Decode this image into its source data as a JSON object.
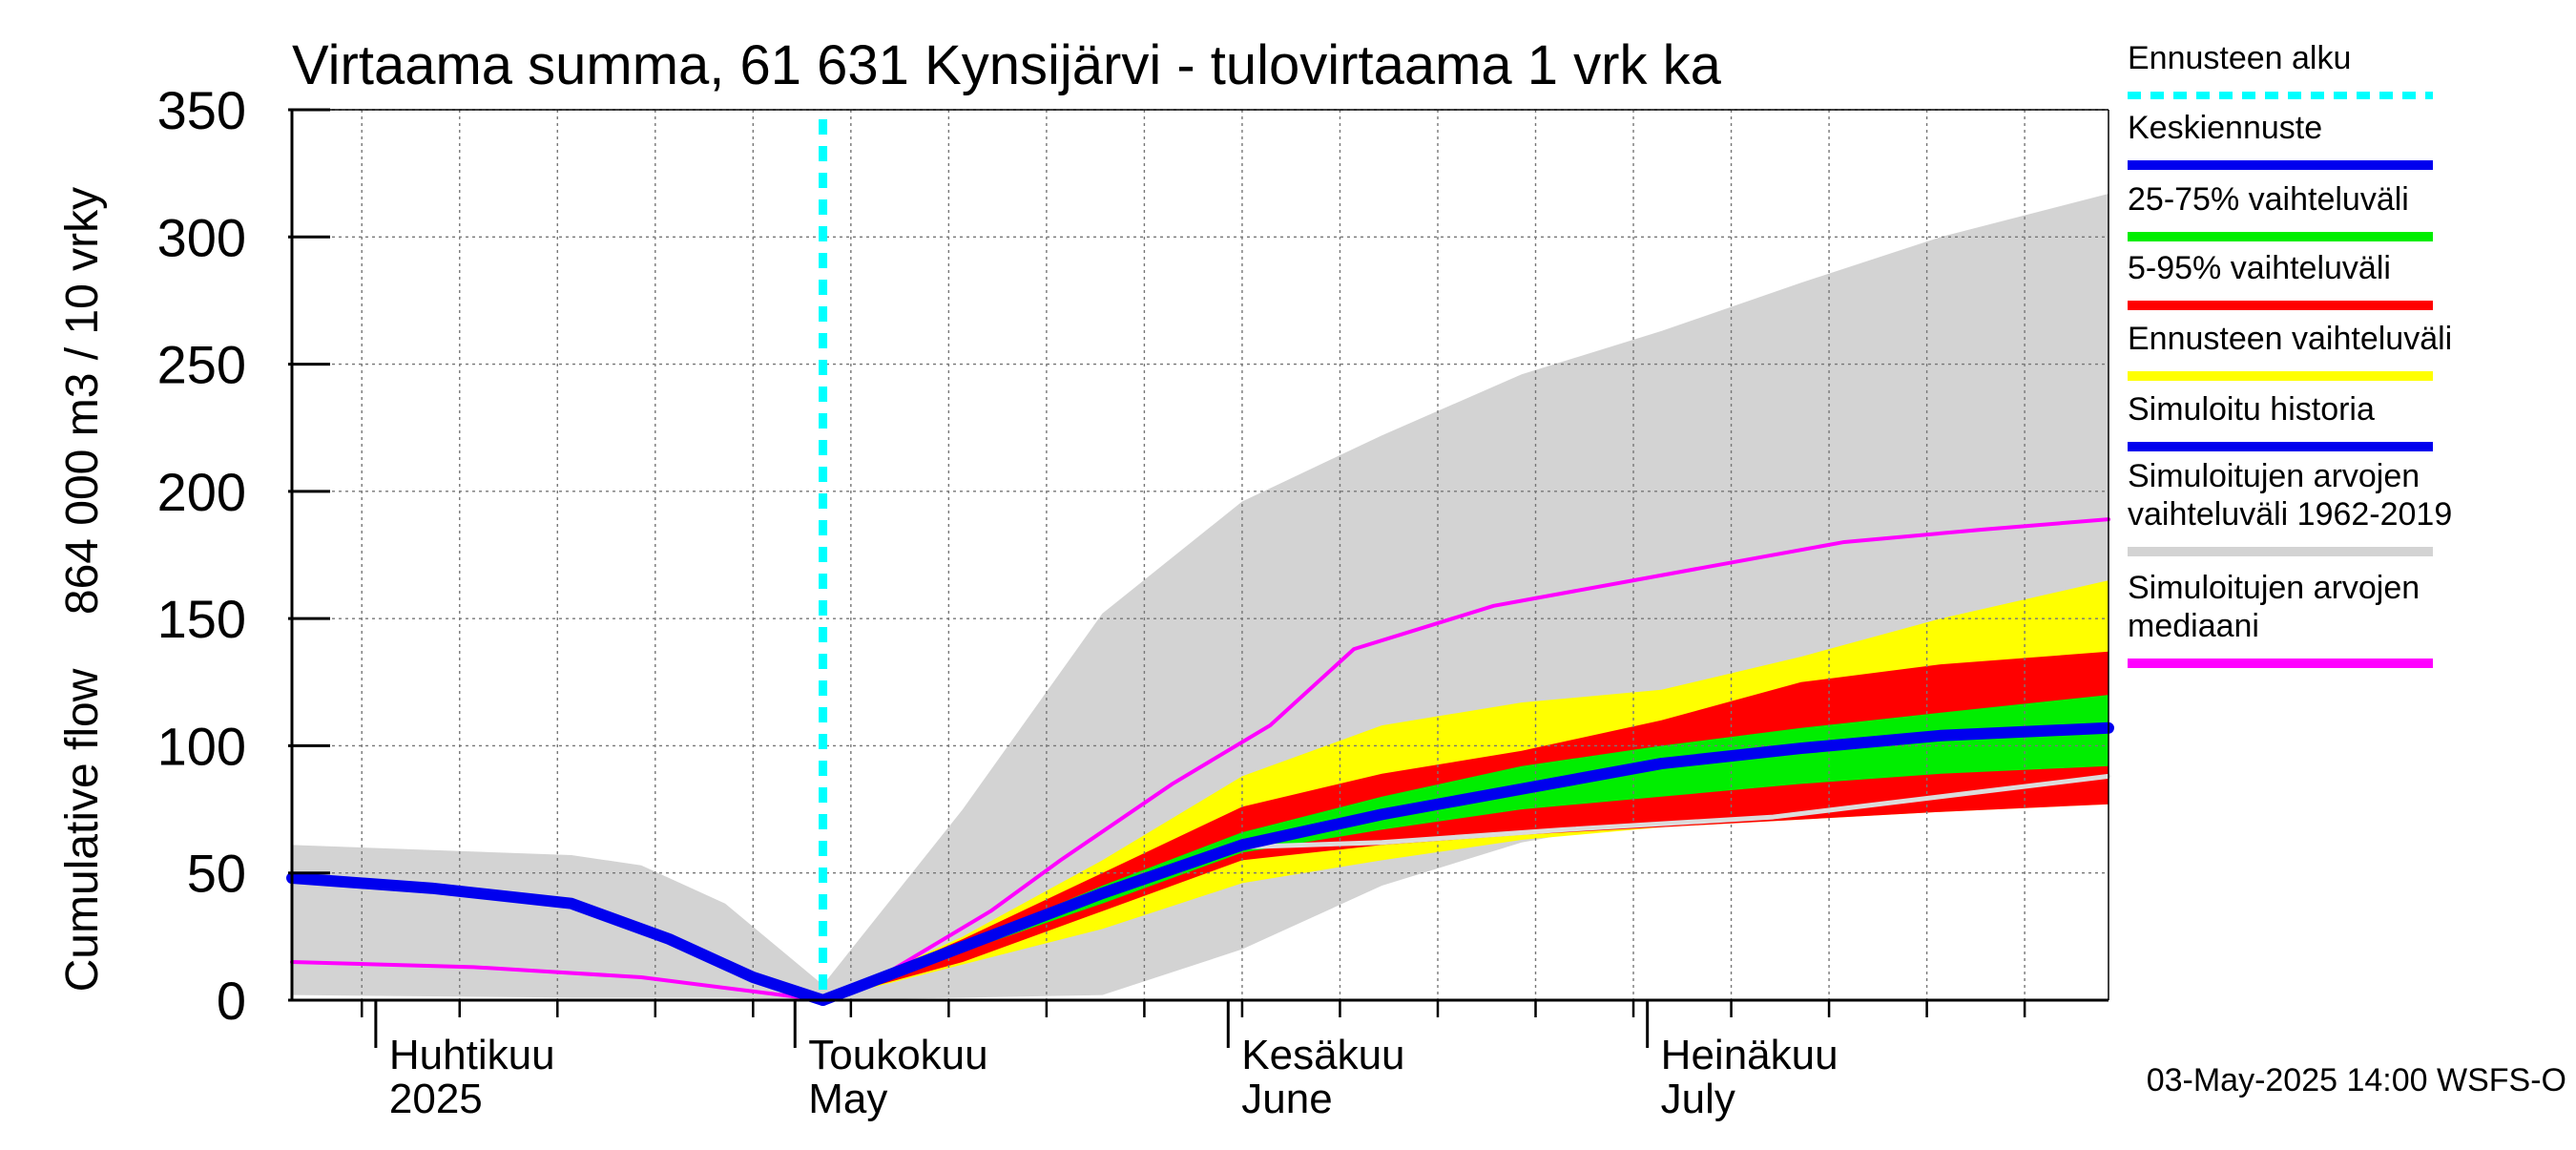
{
  "chart_data": {
    "type": "area",
    "title": "Virtaama summa, 61 631 Kynsijärvi - tulovirtaama 1 vrk ka",
    "ylabel_top": "864 000 m3 / 10 vrky",
    "ylabel_bottom": "Cumulative flow",
    "ylim": [
      0,
      350
    ],
    "yticks": [
      "0",
      "50",
      "100",
      "150",
      "200",
      "250",
      "300",
      "350"
    ],
    "x_range": [
      "2025-03-26",
      "2025-08-03"
    ],
    "forecast_start": "2025-05-03",
    "grid": true,
    "legend_position": "right",
    "month_labels": [
      {
        "date": "2025-04-01",
        "fi": "Huhtikuu",
        "en": "2025"
      },
      {
        "date": "2025-05-01",
        "fi": "Toukokuu",
        "en": "May"
      },
      {
        "date": "2025-06-01",
        "fi": "Kesäkuu",
        "en": "June"
      },
      {
        "date": "2025-07-01",
        "fi": "Heinäkuu",
        "en": "July"
      }
    ],
    "colors": {
      "history_range": "#d3d3d3",
      "forecast_range": "#ffff00",
      "p5_95": "#ff0000",
      "p25_75": "#00ee00",
      "mean": "#0000ee",
      "median_hist": "#ff00ff",
      "sim_median_white": "#dcdcdc",
      "forecast_start": "#00ffff"
    },
    "series": [
      {
        "name": "Simuloitujen arvojen vaihteluväli 1962-2019",
        "kind": "band",
        "x": [
          "2025-03-26",
          "2025-04-15",
          "2025-04-20",
          "2025-04-26",
          "2025-05-03",
          "2025-05-13",
          "2025-05-23",
          "2025-06-02",
          "2025-06-12",
          "2025-06-22",
          "2025-07-02",
          "2025-07-12",
          "2025-07-22",
          "2025-08-03"
        ],
        "upper": [
          61,
          57,
          53,
          38,
          6,
          75,
          152,
          196,
          222,
          246,
          263,
          282,
          300,
          317
        ],
        "lower": [
          2,
          1,
          1,
          1,
          0,
          1,
          2,
          20,
          45,
          62,
          72,
          80,
          88,
          95
        ]
      },
      {
        "name": "Ennusteen vaihteluväli",
        "kind": "band",
        "x": [
          "2025-05-03",
          "2025-05-13",
          "2025-05-23",
          "2025-06-02",
          "2025-06-12",
          "2025-06-22",
          "2025-07-02",
          "2025-07-12",
          "2025-07-22",
          "2025-08-03"
        ],
        "upper": [
          0,
          25,
          55,
          88,
          108,
          117,
          122,
          135,
          150,
          165
        ],
        "lower": [
          0,
          14,
          28,
          46,
          55,
          63,
          68,
          71,
          74,
          77
        ]
      },
      {
        "name": "5-95% vaihteluväli",
        "kind": "band",
        "x": [
          "2025-05-03",
          "2025-05-13",
          "2025-05-23",
          "2025-06-02",
          "2025-06-12",
          "2025-06-22",
          "2025-07-02",
          "2025-07-12",
          "2025-07-22",
          "2025-08-03"
        ],
        "upper": [
          0,
          24,
          50,
          76,
          89,
          98,
          110,
          125,
          132,
          137
        ],
        "lower": [
          0,
          15,
          35,
          55,
          61,
          65,
          68,
          71,
          74,
          77
        ]
      },
      {
        "name": "25-75% vaihteluväli",
        "kind": "band",
        "x": [
          "2025-05-03",
          "2025-05-13",
          "2025-05-23",
          "2025-06-02",
          "2025-06-12",
          "2025-06-22",
          "2025-07-02",
          "2025-07-12",
          "2025-07-22",
          "2025-08-03"
        ],
        "upper": [
          0,
          22,
          45,
          66,
          80,
          92,
          100,
          107,
          113,
          120
        ],
        "lower": [
          0,
          19,
          38,
          58,
          67,
          75,
          80,
          85,
          89,
          92
        ]
      },
      {
        "name": "Keskiennuste",
        "kind": "line",
        "x": [
          "2025-05-03",
          "2025-05-13",
          "2025-05-23",
          "2025-06-02",
          "2025-06-12",
          "2025-06-22",
          "2025-07-02",
          "2025-07-12",
          "2025-07-22",
          "2025-08-03"
        ],
        "values": [
          0,
          21,
          42,
          61,
          73,
          83,
          93,
          99,
          104,
          107
        ]
      },
      {
        "name": "Simuloitu historia",
        "kind": "line",
        "x": [
          "2025-03-26",
          "2025-04-05",
          "2025-04-15",
          "2025-04-22",
          "2025-04-28",
          "2025-05-03"
        ],
        "values": [
          48,
          44,
          38,
          24,
          9,
          0
        ]
      },
      {
        "name": "Simuloitujen arvojen mediaani",
        "kind": "line",
        "x": [
          "2025-03-26",
          "2025-04-08",
          "2025-04-20",
          "2025-05-03",
          "2025-05-08",
          "2025-05-15",
          "2025-05-20",
          "2025-05-28",
          "2025-06-04",
          "2025-06-10",
          "2025-06-20",
          "2025-07-01",
          "2025-07-15",
          "2025-07-25",
          "2025-08-03"
        ],
        "values": [
          15,
          13,
          9,
          0,
          12,
          35,
          55,
          85,
          108,
          138,
          155,
          166,
          180,
          185,
          189
        ]
      },
      {
        "name": "",
        "kind": "line",
        "x": [
          "2025-06-01",
          "2025-06-12",
          "2025-06-25",
          "2025-07-10",
          "2025-07-25",
          "2025-08-03"
        ],
        "values": [
          60,
          62,
          67,
          72,
          82,
          88
        ]
      }
    ]
  },
  "legend": [
    {
      "label": "Ennusteen alku",
      "kind": "dash",
      "color": "#00ffff"
    },
    {
      "label": "Keskiennuste",
      "kind": "line",
      "color": "#0000ee"
    },
    {
      "label": "25-75% vaihteluväli",
      "kind": "line",
      "color": "#00ee00"
    },
    {
      "label": "5-95% vaihteluväli",
      "kind": "line",
      "color": "#ff0000"
    },
    {
      "label": "Ennusteen vaihteluväli",
      "kind": "line",
      "color": "#ffff00"
    },
    {
      "label": "Simuloitu historia",
      "kind": "line",
      "color": "#0000ee"
    },
    {
      "label": "Simuloitujen arvojen\nvaihteluväli 1962-2019",
      "kind": "line",
      "color": "#d3d3d3"
    },
    {
      "label": "Simuloitujen arvojen\nmediaani",
      "kind": "line",
      "color": "#ff00ff"
    }
  ],
  "footer": {
    "timestamp": "03-May-2025 14:00 WSFS-O"
  }
}
